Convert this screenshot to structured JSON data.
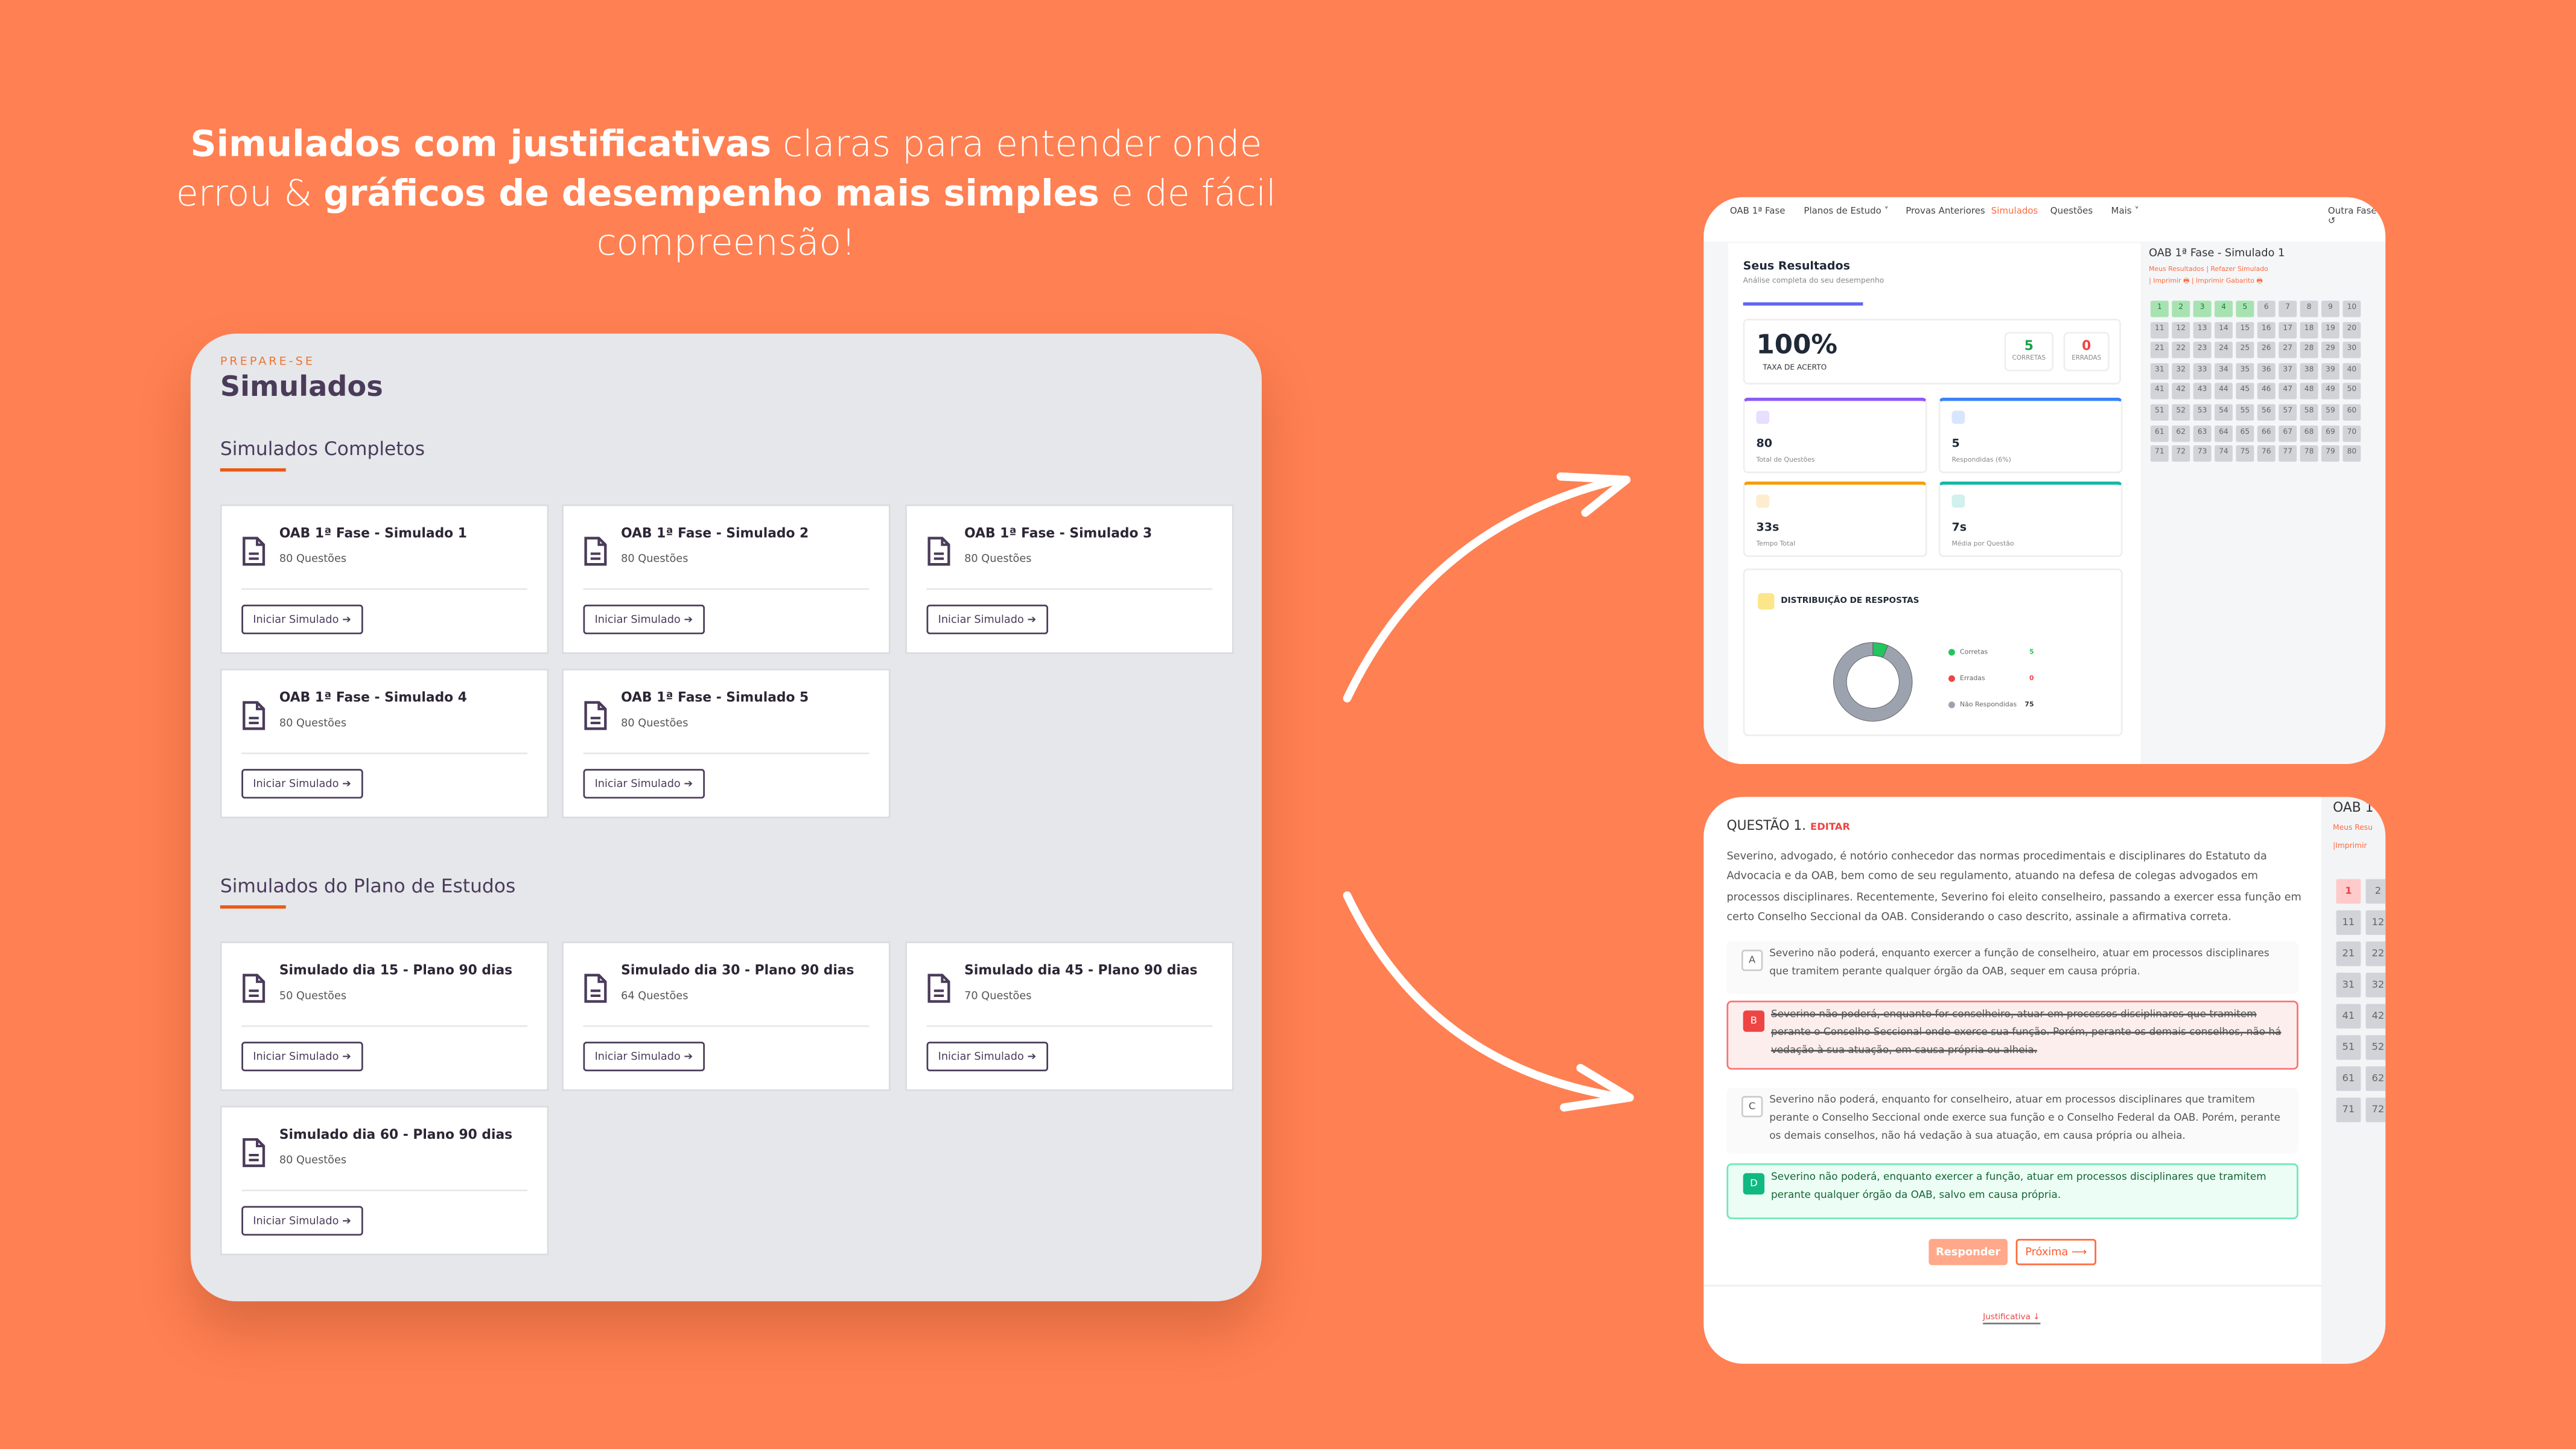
{
  "headline": {
    "b1": "Simulados com justificativas",
    "t1": " claras para entender onde errou & ",
    "b2": "gráficos de desempenho mais simples",
    "t2": " e de fácil compreensão!"
  },
  "simulados_page": {
    "eyebrow": "PREPARE-SE",
    "title": "Simulados",
    "sections": [
      {
        "title": "Simulados Completos",
        "items": [
          {
            "name": "OAB 1ª Fase - Simulado 1",
            "count": "80 Questões",
            "button": "Iniciar Simulado"
          },
          {
            "name": "OAB 1ª Fase - Simulado 2",
            "count": "80 Questões",
            "button": "Iniciar Simulado"
          },
          {
            "name": "OAB 1ª Fase - Simulado 3",
            "count": "80 Questões",
            "button": "Iniciar Simulado"
          },
          {
            "name": "OAB 1ª Fase - Simulado 4",
            "count": "80 Questões",
            "button": "Iniciar Simulado"
          },
          {
            "name": "OAB 1ª Fase - Simulado 5",
            "count": "80 Questões",
            "button": "Iniciar Simulado"
          }
        ]
      },
      {
        "title": "Simulados do Plano de Estudos",
        "items": [
          {
            "name": "Simulado dia 15 - Plano 90 dias",
            "count": "50 Questões",
            "button": "Iniciar Simulado"
          },
          {
            "name": "Simulado dia 30 - Plano 90 dias",
            "count": "64 Questões",
            "button": "Iniciar Simulado"
          },
          {
            "name": "Simulado dia 45 - Plano 90 dias",
            "count": "70 Questões",
            "button": "Iniciar Simulado"
          },
          {
            "name": "Simulado dia 60 - Plano 90 dias",
            "count": "80 Questões",
            "button": "Iniciar Simulado"
          }
        ]
      }
    ]
  },
  "nav": {
    "home": "OAB 1ª Fase",
    "planos": "Planos de Estudo ˅",
    "provas": "Provas Anteriores",
    "simulados": "Simulados",
    "questoes": "Questões",
    "mais": "Mais ˅",
    "outra": "Outra Fase ↺"
  },
  "results": {
    "title": "Seus Resultados",
    "subtitle": "Análise completa do seu desempenho",
    "rate": "100%",
    "rate_label": "TAXA DE ACERTO",
    "correct": "5",
    "correct_label": "CORRETAS",
    "wrong": "0",
    "wrong_label": "ERRADAS",
    "stats": [
      {
        "value": "80",
        "label": "Total de Questões"
      },
      {
        "value": "5",
        "label": "Respondidas (6%)"
      },
      {
        "value": "33s",
        "label": "Tempo Total"
      },
      {
        "value": "7s",
        "label": "Média por Questão"
      }
    ],
    "dist_title": "DISTRIBUIÇÃO DE RESPOSTAS",
    "chart_data": {
      "type": "pie",
      "categories": [
        "Corretas",
        "Erradas",
        "Não Respondidas"
      ],
      "values": [
        5,
        0,
        75
      ],
      "colors": [
        "#22c55e",
        "#ef4444",
        "#9ca3af"
      ]
    }
  },
  "sim_sidebar": {
    "title": "OAB 1ª Fase - Simulado 1",
    "links": [
      "Meus Resultados",
      "Refazer Simulado"
    ],
    "print": [
      "Imprimir",
      "Imprimir Gabarito"
    ],
    "total": 80,
    "answered_correct": [
      1,
      2,
      3,
      4,
      5
    ]
  },
  "question": {
    "label": "QUESTÃO 1.",
    "edit": "EDITAR",
    "text": "Severino, advogado, é notório conhecedor das normas procedimentais e disciplinares do Estatuto da Advocacia e da OAB, bem como de seu regulamento, atuando na defesa de colegas advogados em processos disciplinares. Recentemente, Severino foi eleito conselheiro, passando a exercer essa função em certo Conselho Seccional da OAB. Considerando o caso descrito, assinale a afirmativa correta.",
    "options": [
      {
        "letter": "A",
        "text": "Severino não poderá, enquanto exercer a função de conselheiro, atuar em processos disciplinares que tramitem perante qualquer órgão da OAB, sequer em causa própria.",
        "state": "neutral"
      },
      {
        "letter": "B",
        "text": "Severino não poderá, enquanto for conselheiro, atuar em processos disciplinares que tramitem perante o Conselho Seccional onde exerce sua função. Porém, perante os demais conselhos, não há vedação à sua atuação, em causa própria ou alheia.",
        "state": "wrong"
      },
      {
        "letter": "C",
        "text": "Severino não poderá, enquanto for conselheiro, atuar em processos disciplinares que tramitem perante o Conselho Seccional onde exerce sua função e o Conselho Federal da OAB. Porém, perante os demais conselhos, não há vedação à sua atuação, em causa própria ou alheia.",
        "state": "neutral"
      },
      {
        "letter": "D",
        "text": "Severino não poderá, enquanto exercer a função, atuar em processos disciplinares que tramitem perante qualquer órgão da OAB, salvo em causa própria.",
        "state": "correct"
      }
    ],
    "respond": "Responder",
    "next": "Próxima ⟶",
    "justification": "Justificativa ↓",
    "side_title": "OAB 1",
    "side_link": "Meus Resu",
    "side_print": "Imprimir"
  },
  "colors": {
    "background": "#ff8052",
    "accent": "#ea5a14",
    "correct": "#22c55e",
    "wrong": "#ef4444"
  }
}
